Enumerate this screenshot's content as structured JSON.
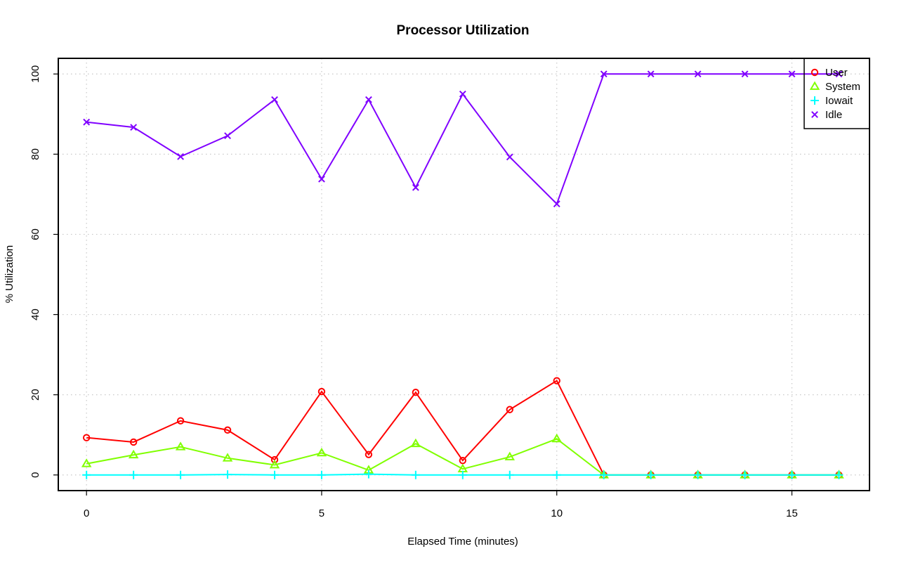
{
  "chart_data": {
    "type": "line",
    "title": "Processor Utilization",
    "xlabel": "Elapsed Time (minutes)",
    "ylabel": "% Utilization",
    "xlim": [
      -0.6,
      16.65
    ],
    "ylim": [
      -3.9,
      103.9
    ],
    "xticks": [
      0,
      5,
      10,
      15
    ],
    "yticks": [
      0,
      20,
      40,
      60,
      80,
      100
    ],
    "grid": true,
    "legend_position": "top-right",
    "x": [
      0,
      1,
      2,
      3,
      4,
      5,
      6,
      7,
      8,
      9,
      10,
      11,
      12,
      13,
      14,
      15,
      16
    ],
    "series": [
      {
        "name": "User",
        "color": "#ff0000",
        "marker": "circle",
        "values": [
          9.3,
          8.2,
          13.5,
          11.2,
          3.8,
          20.8,
          5.1,
          20.6,
          3.6,
          16.3,
          23.5,
          0,
          0,
          0,
          0,
          0,
          0
        ]
      },
      {
        "name": "System",
        "color": "#80ff00",
        "marker": "triangle",
        "values": [
          2.8,
          5.0,
          7.0,
          4.2,
          2.5,
          5.5,
          1.2,
          7.8,
          1.5,
          4.5,
          9.0,
          0,
          0,
          0,
          0,
          0,
          0
        ]
      },
      {
        "name": "Iowait",
        "color": "#00ffff",
        "marker": "plus",
        "values": [
          0,
          0,
          0,
          0.1,
          0,
          0,
          0.2,
          0,
          0,
          0,
          0,
          0,
          0,
          0,
          0,
          0,
          0
        ]
      },
      {
        "name": "Idle",
        "color": "#8000ff",
        "marker": "cross",
        "values": [
          88.0,
          86.7,
          79.4,
          84.6,
          93.6,
          73.8,
          93.6,
          71.7,
          95.0,
          79.3,
          67.6,
          100,
          100,
          100,
          100,
          100,
          100
        ]
      }
    ]
  }
}
